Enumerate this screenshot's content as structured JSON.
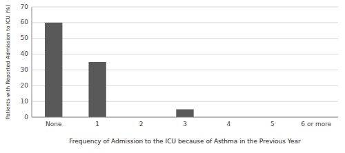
{
  "chart_data": {
    "type": "bar",
    "categories": [
      "None",
      "1",
      "2",
      "3",
      "4",
      "5",
      "6 or more"
    ],
    "values": [
      60,
      35,
      0,
      5,
      0,
      0,
      0
    ],
    "color": "#595959",
    "xlabel": "Frequency of Admission to the ICU because of Asthma in the Previous Year",
    "ylabel": "Patients with Reported Admission to ICU (%)",
    "ylim": [
      0,
      70
    ],
    "yticks": [
      0,
      10,
      20,
      30,
      40,
      50,
      60,
      70
    ],
    "grid": true
  }
}
